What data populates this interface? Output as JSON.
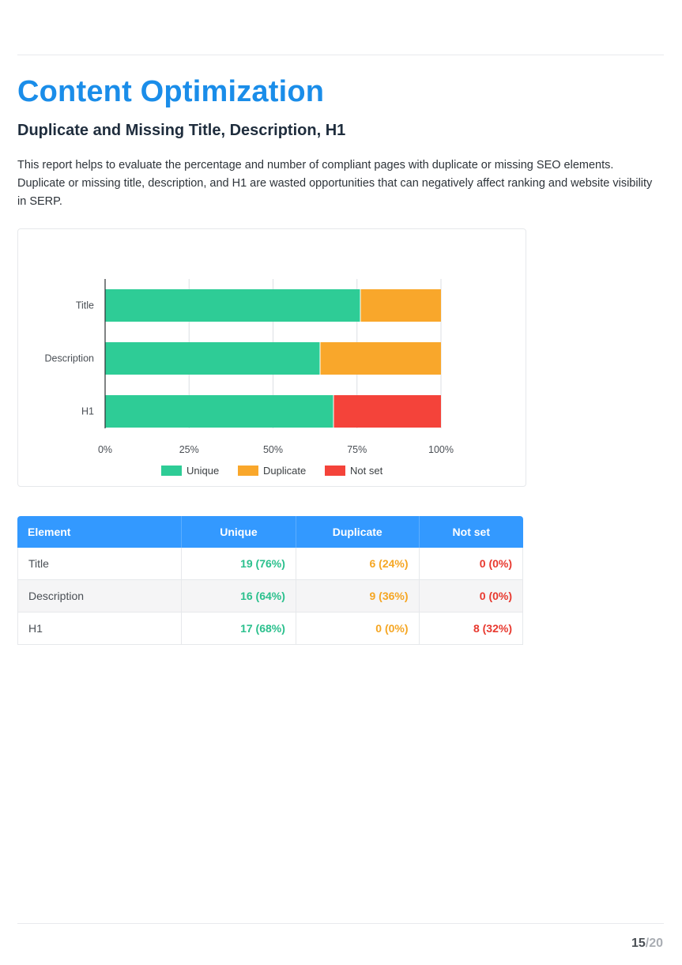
{
  "page": {
    "title": "Content Optimization",
    "subtitle": "Duplicate and Missing Title, Description, H1",
    "description": "This report helps to evaluate the percentage and number of compliant pages with duplicate or missing SEO elements. Duplicate or missing title, description, and H1 are wasted opportunities that can negatively affect ranking and website visibility in SERP.",
    "page_current": "15",
    "page_sep": "/",
    "page_total": "20"
  },
  "chart_data": {
    "type": "bar",
    "orientation": "horizontal",
    "stacked": true,
    "categories": [
      "Title",
      "Description",
      "H1"
    ],
    "series": [
      {
        "name": "Unique",
        "color": "#2ecc96",
        "values": [
          76,
          64,
          68
        ]
      },
      {
        "name": "Duplicate",
        "color": "#f9a72b",
        "values": [
          24,
          36,
          0
        ]
      },
      {
        "name": "Not set",
        "color": "#f4433a",
        "values": [
          0,
          0,
          32
        ]
      }
    ],
    "xlim": [
      0,
      100
    ],
    "x_ticks": [
      "0%",
      "25%",
      "50%",
      "75%",
      "100%"
    ],
    "grid": true,
    "legend": "bottom"
  },
  "table": {
    "headers": [
      "Element",
      "Unique",
      "Duplicate",
      "Not set"
    ],
    "rows": [
      [
        "Title",
        "19 (76%)",
        "6 (24%)",
        "0 (0%)"
      ],
      [
        "Description",
        "16 (64%)",
        "9 (36%)",
        "0 (0%)"
      ],
      [
        "H1",
        "17 (68%)",
        "0 (0%)",
        "8 (32%)"
      ]
    ]
  }
}
